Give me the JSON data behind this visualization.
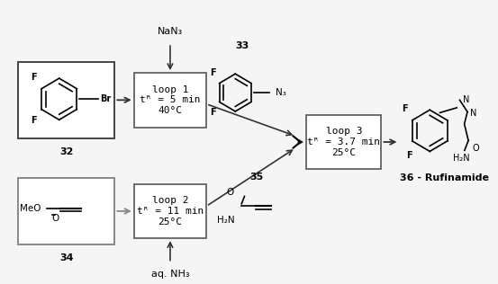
{
  "bg_color": "#f0f0f0",
  "box_color": "#ffffff",
  "box_edge_color": "#555555",
  "arrow_color": "#333333",
  "text_color": "#000000",
  "loop1_text": "loop 1\ntᴿ = 5 min\n40°C",
  "loop2_text": "loop 2\ntᴿ = 11 min\n25°C",
  "loop3_text": "loop 3\ntᴿ = 3.7 min\n25°C",
  "label32": "32",
  "label33": "33",
  "label34": "34",
  "label35": "35",
  "label36": "36 - Rufinamide",
  "nan3_label": "NaN₃",
  "nh3_label": "aq. NH₃",
  "fig_width": 5.53,
  "fig_height": 3.16
}
